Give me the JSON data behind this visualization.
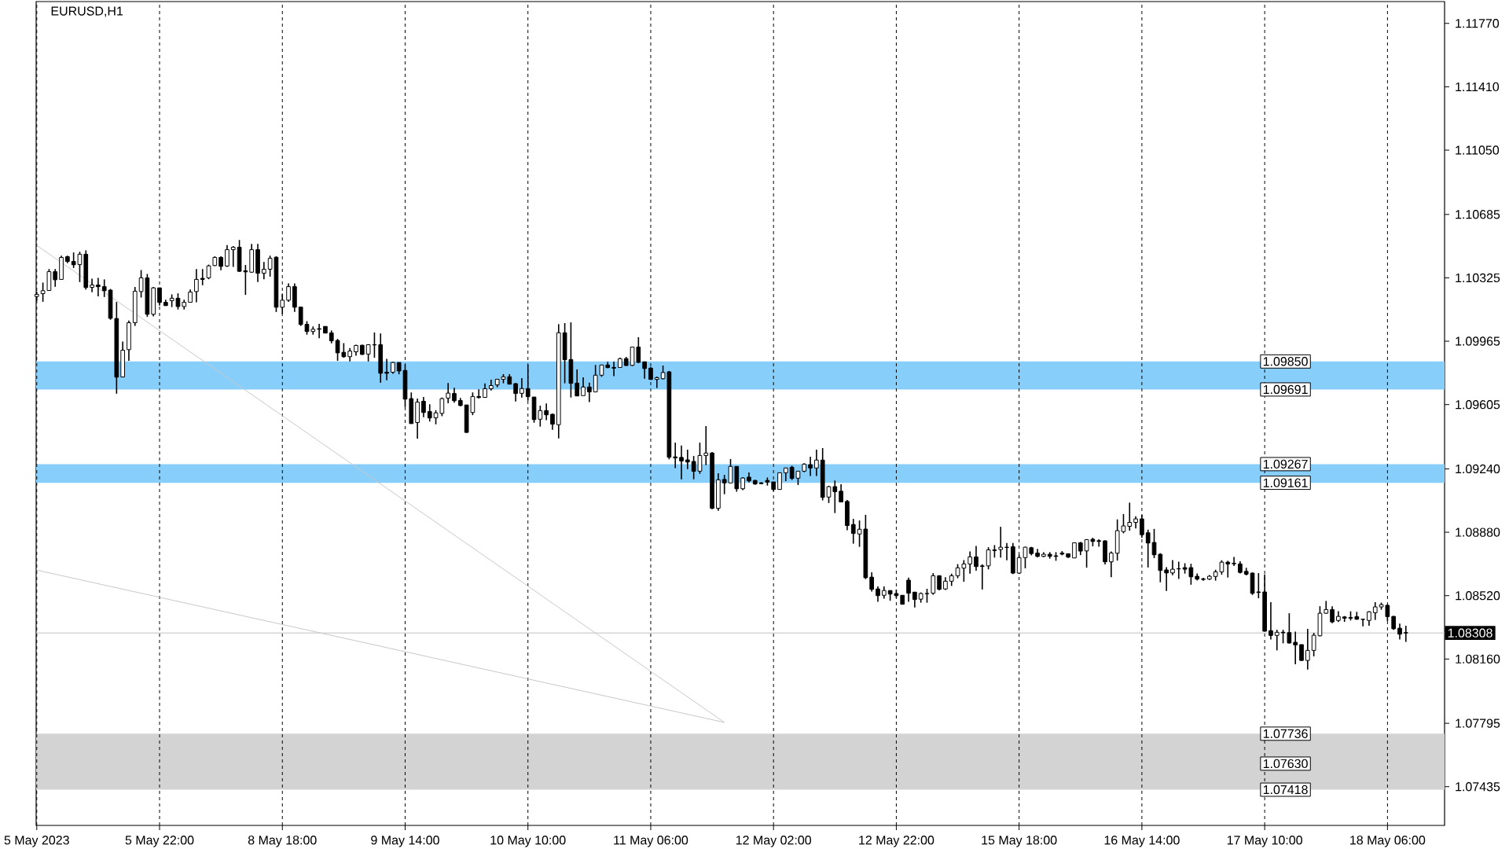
{
  "chart_data": {
    "type": "candlestick",
    "title": "EURUSD,H1",
    "color": "#000000",
    "categories": [
      "5 May 2023",
      null,
      null,
      null,
      null,
      null,
      null,
      null,
      null,
      null,
      null,
      null,
      null,
      null,
      null,
      null,
      null,
      null,
      null,
      null,
      "5 May 22:00",
      null,
      null,
      null,
      null,
      null,
      null,
      null,
      null,
      null,
      null,
      null,
      null,
      null,
      null,
      null,
      null,
      null,
      null,
      null,
      "8 May 18:00",
      null,
      null,
      null,
      null,
      null,
      null,
      null,
      null,
      null,
      null,
      null,
      null,
      null,
      null,
      null,
      null,
      null,
      null,
      null,
      "9 May 14:00",
      null,
      null,
      null,
      null,
      null,
      null,
      null,
      null,
      null,
      null,
      null,
      null,
      null,
      null,
      null,
      null,
      null,
      null,
      null,
      "10 May 10:00",
      null,
      null,
      null,
      null,
      null,
      null,
      null,
      null,
      null,
      null,
      null,
      null,
      null,
      null,
      null,
      null,
      null,
      null,
      null,
      "11 May 06:00",
      null,
      null,
      null,
      null,
      null,
      null,
      null,
      null,
      null,
      null,
      null,
      null,
      null,
      null,
      null,
      null,
      null,
      null,
      null,
      "12 May 02:00",
      null,
      null,
      null,
      null,
      null,
      null,
      null,
      null,
      null,
      null,
      null,
      null,
      null,
      null,
      null,
      null,
      null,
      null,
      null,
      "12 May 22:00",
      null,
      null,
      null,
      null,
      null,
      null,
      null,
      null,
      null,
      null,
      null,
      null,
      null,
      null,
      null,
      null,
      null,
      null,
      null,
      "15 May 18:00",
      null,
      null,
      null,
      null,
      null,
      null,
      null,
      null,
      null,
      null,
      null,
      null,
      null,
      null,
      null,
      null,
      null,
      null,
      null,
      "16 May 14:00",
      null,
      null,
      null,
      null,
      null,
      null,
      null,
      null,
      null,
      null,
      null,
      null,
      null,
      null,
      null,
      null,
      null,
      null,
      null,
      "17 May 10:00",
      null,
      null,
      null,
      null,
      null,
      null,
      null,
      null,
      null,
      null,
      null,
      null,
      null,
      null,
      null,
      null,
      null,
      null,
      null,
      "18 May 06:00",
      null,
      null,
      null
    ],
    "ohlc": [
      [
        1.10219,
        1.10246,
        1.10195,
        1.10231
      ],
      [
        1.10235,
        1.10298,
        1.10189,
        1.10252
      ],
      [
        1.10253,
        1.10375,
        1.10252,
        1.1036
      ],
      [
        1.1036,
        1.10375,
        1.10274,
        1.10314
      ],
      [
        1.10316,
        1.10451,
        1.10316,
        1.10441
      ],
      [
        1.10445,
        1.10451,
        1.10408,
        1.10418
      ],
      [
        1.10418,
        1.10469,
        1.10381,
        1.10399
      ],
      [
        1.104,
        1.10473,
        1.10301,
        1.10459
      ],
      [
        1.10459,
        1.10481,
        1.10258,
        1.1027
      ],
      [
        1.10271,
        1.1032,
        1.10243,
        1.10284
      ],
      [
        1.10284,
        1.10325,
        1.1022,
        1.10275
      ],
      [
        1.10275,
        1.10316,
        1.10216,
        1.10252
      ],
      [
        1.10255,
        1.10262,
        1.10087,
        1.10095
      ],
      [
        1.10094,
        1.10188,
        1.09667,
        1.09761
      ],
      [
        1.09762,
        1.09963,
        1.09762,
        1.09914
      ],
      [
        1.09917,
        1.10082,
        1.09854,
        1.1007
      ],
      [
        1.1007,
        1.10273,
        1.10052,
        1.10249
      ],
      [
        1.10247,
        1.10369,
        1.10213,
        1.10325
      ],
      [
        1.10325,
        1.10347,
        1.10103,
        1.10118
      ],
      [
        1.10118,
        1.10273,
        1.10106,
        1.10268
      ],
      [
        1.10268,
        1.10268,
        1.10167,
        1.10185
      ],
      [
        1.10186,
        1.10201,
        1.10167,
        1.10167
      ],
      [
        1.10195,
        1.10231,
        1.10159,
        1.10209
      ],
      [
        1.10209,
        1.10237,
        1.10145,
        1.10162
      ],
      [
        1.10162,
        1.10201,
        1.10145,
        1.10186
      ],
      [
        1.10186,
        1.10259,
        1.10186,
        1.10244
      ],
      [
        1.10247,
        1.10375,
        1.10186,
        1.10316
      ],
      [
        1.10322,
        1.10375,
        1.10283,
        1.10316
      ],
      [
        1.10325,
        1.104,
        1.10317,
        1.10393
      ],
      [
        1.10395,
        1.10447,
        1.10392,
        1.10441
      ],
      [
        1.10441,
        1.10447,
        1.10368,
        1.1039
      ],
      [
        1.10392,
        1.10511,
        1.10387,
        1.10485
      ],
      [
        1.10485,
        1.10505,
        1.10387,
        1.10499
      ],
      [
        1.10499,
        1.1054,
        1.10359,
        1.10362
      ],
      [
        1.10365,
        1.10398,
        1.10228,
        1.10359
      ],
      [
        1.10357,
        1.10518,
        1.10354,
        1.10485
      ],
      [
        1.10485,
        1.10518,
        1.10301,
        1.10351
      ],
      [
        1.10351,
        1.10415,
        1.10317,
        1.10374
      ],
      [
        1.10374,
        1.10451,
        1.10332,
        1.10436
      ],
      [
        1.10442,
        1.10447,
        1.10131,
        1.10158
      ],
      [
        1.10158,
        1.10235,
        1.10119,
        1.10198
      ],
      [
        1.10198,
        1.10293,
        1.10189,
        1.10275
      ],
      [
        1.10275,
        1.10293,
        1.10131,
        1.10158
      ],
      [
        1.10159,
        1.10159,
        1.10052,
        1.1006
      ],
      [
        1.10061,
        1.10079,
        1.10002,
        1.1002
      ],
      [
        1.1002,
        1.10049,
        1.10002,
        1.10033
      ],
      [
        1.10036,
        1.10064,
        1.09982,
        1.10033
      ],
      [
        1.10049,
        1.10049,
        1.10011,
        1.10011
      ],
      [
        1.10012,
        1.10026,
        1.09953,
        1.09967
      ],
      [
        1.09969,
        1.09978,
        1.09854,
        1.09899
      ],
      [
        1.09902,
        1.09954,
        1.09871,
        1.09877
      ],
      [
        1.09877,
        1.09926,
        1.0985,
        1.09909
      ],
      [
        1.09905,
        1.09945,
        1.09883,
        1.09941
      ],
      [
        1.09942,
        1.09945,
        1.09887,
        1.0989
      ],
      [
        1.09892,
        1.09948,
        1.0985,
        1.09945
      ],
      [
        1.09945,
        1.10015,
        1.09871,
        1.09944
      ],
      [
        1.09945,
        1.10009,
        1.09729,
        1.09783
      ],
      [
        1.09789,
        1.09865,
        1.09743,
        1.09783
      ],
      [
        1.09789,
        1.09847,
        1.0978,
        1.09844
      ],
      [
        1.09844,
        1.09844,
        1.09777,
        1.09796
      ],
      [
        1.09799,
        1.09834,
        1.09591,
        1.09636
      ],
      [
        1.09639,
        1.09674,
        1.09497,
        1.09497
      ],
      [
        1.09503,
        1.09639,
        1.09412,
        1.09619
      ],
      [
        1.09624,
        1.09648,
        1.09533,
        1.0956
      ],
      [
        1.09566,
        1.09607,
        1.09509,
        1.09529
      ],
      [
        1.0953,
        1.09573,
        1.09493,
        1.09558
      ],
      [
        1.09555,
        1.09645,
        1.09539,
        1.09639
      ],
      [
        1.09642,
        1.09728,
        1.09612,
        1.0967
      ],
      [
        1.09668,
        1.09701,
        1.09616,
        1.09627
      ],
      [
        1.09628,
        1.09643,
        1.09595,
        1.096
      ],
      [
        1.09603,
        1.09603,
        1.09445,
        1.09447
      ],
      [
        1.0956,
        1.09674,
        1.09545,
        1.09651
      ],
      [
        1.09651,
        1.09692,
        1.0964,
        1.09645
      ],
      [
        1.09646,
        1.09725,
        1.09646,
        1.09695
      ],
      [
        1.09695,
        1.09746,
        1.09685,
        1.09713
      ],
      [
        1.09717,
        1.09749,
        1.09704,
        1.09749
      ],
      [
        1.09749,
        1.09778,
        1.09726,
        1.09763
      ],
      [
        1.09763,
        1.09778,
        1.09721,
        1.09721
      ],
      [
        1.09724,
        1.09727,
        1.09623,
        1.09668
      ],
      [
        1.09669,
        1.09755,
        1.09645,
        1.09696
      ],
      [
        1.09696,
        1.09831,
        1.09627,
        1.0965
      ],
      [
        1.09648,
        1.09648,
        1.09502,
        1.0952
      ],
      [
        1.09522,
        1.09599,
        1.0948,
        1.09571
      ],
      [
        1.09571,
        1.09611,
        1.09516,
        1.09547
      ],
      [
        1.0955,
        1.09555,
        1.09462,
        1.09494
      ],
      [
        1.09491,
        1.10062,
        1.09413,
        1.10013
      ],
      [
        1.10013,
        1.10068,
        1.09726,
        1.0986
      ],
      [
        1.09861,
        1.10072,
        1.09645,
        1.09726
      ],
      [
        1.09727,
        1.09805,
        1.09654,
        1.09654
      ],
      [
        1.09656,
        1.0976,
        1.09656,
        1.09705
      ],
      [
        1.09705,
        1.0973,
        1.09619,
        1.09677
      ],
      [
        1.09677,
        1.0983,
        1.09677,
        1.09772
      ],
      [
        1.09772,
        1.0983,
        1.09763,
        1.0983
      ],
      [
        1.0983,
        1.09848,
        1.09812,
        1.09815
      ],
      [
        1.09816,
        1.09849,
        1.09766,
        1.09812
      ],
      [
        1.09816,
        1.09871,
        1.09816,
        1.09866
      ],
      [
        1.09866,
        1.09876,
        1.09825,
        1.09827
      ],
      [
        1.09828,
        1.09932,
        1.09824,
        1.09932
      ],
      [
        1.09932,
        1.09988,
        1.0984,
        1.09845
      ],
      [
        1.09848,
        1.09848,
        1.09752,
        1.0981
      ],
      [
        1.09812,
        1.09819,
        1.09745,
        1.09748
      ],
      [
        1.09748,
        1.09764,
        1.09699,
        1.09758
      ],
      [
        1.09752,
        1.09827,
        1.09748,
        1.09787
      ],
      [
        1.09791,
        1.09796,
        1.09294,
        1.09306
      ],
      [
        1.09308,
        1.09389,
        1.09244,
        1.09302
      ],
      [
        1.09305,
        1.09372,
        1.09181,
        1.09285
      ],
      [
        1.09291,
        1.09349,
        1.09239,
        1.09279
      ],
      [
        1.09282,
        1.09313,
        1.09181,
        1.09226
      ],
      [
        1.09227,
        1.09389,
        1.09212,
        1.09316
      ],
      [
        1.09316,
        1.09483,
        1.09261,
        1.0933
      ],
      [
        1.0933,
        1.09336,
        1.09011,
        1.09016
      ],
      [
        1.09016,
        1.09215,
        1.09002,
        1.09178
      ],
      [
        1.0918,
        1.09206,
        1.09096,
        1.0916
      ],
      [
        1.0916,
        1.09296,
        1.0916,
        1.09254
      ],
      [
        1.09254,
        1.09254,
        1.0911,
        1.09127
      ],
      [
        1.09127,
        1.09193,
        1.09119,
        1.09188
      ],
      [
        1.09193,
        1.0922,
        1.09163,
        1.09172
      ],
      [
        1.09174,
        1.09178,
        1.0915,
        1.09154
      ],
      [
        1.0916,
        1.09165,
        1.09154,
        1.09156
      ],
      [
        1.09174,
        1.09191,
        1.09145,
        1.09165
      ],
      [
        1.09166,
        1.09166,
        1.09114,
        1.09123
      ],
      [
        1.09123,
        1.09218,
        1.09123,
        1.09218
      ],
      [
        1.09218,
        1.09245,
        1.09171,
        1.09245
      ],
      [
        1.09249,
        1.09258,
        1.09177,
        1.09186
      ],
      [
        1.09187,
        1.09227,
        1.09148,
        1.09227
      ],
      [
        1.09227,
        1.09272,
        1.09221,
        1.09267
      ],
      [
        1.09264,
        1.09309,
        1.09199,
        1.09245
      ],
      [
        1.09245,
        1.09349,
        1.09199,
        1.0929
      ],
      [
        1.0929,
        1.09358,
        1.09061,
        1.09078
      ],
      [
        1.0908,
        1.09144,
        1.09046,
        1.09139
      ],
      [
        1.09139,
        1.09174,
        1.08989,
        1.0911
      ],
      [
        1.09113,
        1.09153,
        1.09052,
        1.09052
      ],
      [
        1.09055,
        1.09063,
        1.08891,
        1.08918
      ],
      [
        1.08924,
        1.08956,
        1.08815,
        1.08873
      ],
      [
        1.0887,
        1.08947,
        1.08797,
        1.08897
      ],
      [
        1.08898,
        1.08979,
        1.08614,
        1.08622
      ],
      [
        1.08625,
        1.08653,
        1.08543,
        1.08556
      ],
      [
        1.08558,
        1.08572,
        1.08485,
        1.0852
      ],
      [
        1.08522,
        1.08572,
        1.08503,
        1.08549
      ],
      [
        1.08549,
        1.08549,
        1.08491,
        1.08529
      ],
      [
        1.08532,
        1.08555,
        1.08505,
        1.0852
      ],
      [
        1.08522,
        1.08522,
        1.08471,
        1.08471
      ],
      [
        1.08608,
        1.08622,
        1.08485,
        1.08534
      ],
      [
        1.0854,
        1.0854,
        1.08453,
        1.08498
      ],
      [
        1.085,
        1.08538,
        1.0848,
        1.08532
      ],
      [
        1.08531,
        1.08559,
        1.0848,
        1.08532
      ],
      [
        1.08534,
        1.08648,
        1.08525,
        1.08633
      ],
      [
        1.08633,
        1.08636,
        1.0855,
        1.08556
      ],
      [
        1.08558,
        1.08625,
        1.08552,
        1.08602
      ],
      [
        1.08602,
        1.08645,
        1.08575,
        1.08633
      ],
      [
        1.08633,
        1.08699,
        1.08619,
        1.08678
      ],
      [
        1.08676,
        1.08722,
        1.08599,
        1.087
      ],
      [
        1.087,
        1.08771,
        1.08645,
        1.0874
      ],
      [
        1.0874,
        1.08802,
        1.08661,
        1.08685
      ],
      [
        1.08689,
        1.08698,
        1.08555,
        1.08686
      ],
      [
        1.08689,
        1.08795,
        1.08669,
        1.0878
      ],
      [
        1.0878,
        1.08807,
        1.08736,
        1.08776
      ],
      [
        1.08782,
        1.08911,
        1.08736,
        1.08795
      ],
      [
        1.08795,
        1.08819,
        1.08721,
        1.08794
      ],
      [
        1.08798,
        1.08819,
        1.08643,
        1.08648
      ],
      [
        1.08648,
        1.08753,
        1.08643,
        1.08736
      ],
      [
        1.08736,
        1.08798,
        1.08675,
        1.08795
      ],
      [
        1.08792,
        1.08797,
        1.08749,
        1.08759
      ],
      [
        1.08762,
        1.08785,
        1.08737,
        1.08743
      ],
      [
        1.08743,
        1.08767,
        1.08739,
        1.08755
      ],
      [
        1.08755,
        1.08767,
        1.0873,
        1.08743
      ],
      [
        1.08746,
        1.08767,
        1.08718,
        1.08743
      ],
      [
        1.08762,
        1.08773,
        1.08749,
        1.08756
      ],
      [
        1.08758,
        1.08759,
        1.08734,
        1.08739
      ],
      [
        1.08734,
        1.0882,
        1.08734,
        1.0882
      ],
      [
        1.0882,
        1.08825,
        1.0875,
        1.08773
      ],
      [
        1.08774,
        1.08841,
        1.08679,
        1.08838
      ],
      [
        1.0884,
        1.08849,
        1.088,
        1.08828
      ],
      [
        1.08832,
        1.0884,
        1.08798,
        1.08828
      ],
      [
        1.08831,
        1.08835,
        1.08697,
        1.08712
      ],
      [
        1.08712,
        1.08771,
        1.08625,
        1.08762
      ],
      [
        1.08761,
        1.08953,
        1.08719,
        1.08889
      ],
      [
        1.08884,
        1.08983,
        1.08874,
        1.08916
      ],
      [
        1.08914,
        1.09048,
        1.08889,
        1.08936
      ],
      [
        1.08936,
        1.08971,
        1.08902,
        1.08956
      ],
      [
        1.08956,
        1.08978,
        1.08849,
        1.08866
      ],
      [
        1.08877,
        1.08895,
        1.0868,
        1.08819
      ],
      [
        1.08822,
        1.08899,
        1.08733,
        1.08752
      ],
      [
        1.08755,
        1.08761,
        1.08596,
        1.08663
      ],
      [
        1.08666,
        1.08682,
        1.08547,
        1.08649
      ],
      [
        1.08649,
        1.08722,
        1.08636,
        1.0867
      ],
      [
        1.08673,
        1.08713,
        1.08615,
        1.08672
      ],
      [
        1.08679,
        1.08704,
        1.08645,
        1.0867
      ],
      [
        1.08679,
        1.08701,
        1.08582,
        1.08627
      ],
      [
        1.0863,
        1.08646,
        1.08606,
        1.08614
      ],
      [
        1.08615,
        1.08621,
        1.08605,
        1.08612
      ],
      [
        1.08614,
        1.08637,
        1.08609,
        1.0863
      ],
      [
        1.08629,
        1.08667,
        1.08605,
        1.08655
      ],
      [
        1.08655,
        1.08721,
        1.08639,
        1.0871
      ],
      [
        1.0871,
        1.08718,
        1.08623,
        1.087
      ],
      [
        1.08704,
        1.0874,
        1.08688,
        1.08701
      ],
      [
        1.087,
        1.08715,
        1.08646,
        1.08652
      ],
      [
        1.08658,
        1.08678,
        1.08635,
        1.08642
      ],
      [
        1.08648,
        1.08652,
        1.08524,
        1.08533
      ],
      [
        1.08541,
        1.08648,
        1.08505,
        1.08538
      ],
      [
        1.08541,
        1.0864,
        1.08316,
        1.08318
      ],
      [
        1.08321,
        1.08483,
        1.08271,
        1.08294
      ],
      [
        1.08294,
        1.08326,
        1.08209,
        1.08312
      ],
      [
        1.08312,
        1.08326,
        1.08249,
        1.08309
      ],
      [
        1.0831,
        1.0842,
        1.08248,
        1.08251
      ],
      [
        1.08255,
        1.08316,
        1.0813,
        1.0824
      ],
      [
        1.08242,
        1.08242,
        1.08149,
        1.08152
      ],
      [
        1.08152,
        1.08331,
        1.081,
        1.08209
      ],
      [
        1.08209,
        1.08309,
        1.08175,
        1.08295
      ],
      [
        1.08292,
        1.0846,
        1.08289,
        1.0842
      ],
      [
        1.0842,
        1.0849,
        1.08417,
        1.08441
      ],
      [
        1.08441,
        1.08459,
        1.08364,
        1.08371
      ],
      [
        1.08379,
        1.08432,
        1.0837,
        1.08402
      ],
      [
        1.08399,
        1.08404,
        1.08371,
        1.08392
      ],
      [
        1.08396,
        1.08431,
        1.08379,
        1.08392
      ],
      [
        1.08401,
        1.08428,
        1.08383,
        1.08386
      ],
      [
        1.08386,
        1.08386,
        1.08346,
        1.08385
      ],
      [
        1.08379,
        1.08432,
        1.08349,
        1.08428
      ],
      [
        1.08423,
        1.08483,
        1.08382,
        1.08456
      ],
      [
        1.08456,
        1.0848,
        1.0844,
        1.08469
      ],
      [
        1.08465,
        1.08471,
        1.08376,
        1.08401
      ],
      [
        1.08402,
        1.08405,
        1.08326,
        1.08332
      ],
      [
        1.08335,
        1.08361,
        1.08271,
        1.08301
      ],
      [
        1.0831,
        1.08349,
        1.08257,
        1.08308
      ]
    ],
    "series": [
      {
        "type": "line",
        "color": "#c8c8c8",
        "values": [
          1.10509,
          null,
          null,
          null,
          null,
          null,
          null,
          null,
          null,
          null,
          null,
          null,
          null,
          null,
          null,
          null,
          null,
          null,
          null,
          null,
          null,
          null,
          null,
          null,
          null,
          null,
          null,
          null,
          null,
          null,
          null,
          null,
          null,
          null,
          null,
          null,
          null,
          null,
          null,
          null,
          null,
          null,
          null,
          null,
          null,
          null,
          null,
          null,
          null,
          null,
          null,
          null,
          null,
          null,
          null,
          null,
          null,
          null,
          null,
          null,
          null,
          null,
          null,
          null,
          null,
          null,
          null,
          null,
          null,
          null,
          null,
          null,
          null,
          null,
          null,
          null,
          null,
          null,
          null,
          null,
          null,
          null,
          null,
          null,
          null,
          null,
          null,
          null,
          null,
          null,
          null,
          null,
          null,
          null,
          null,
          null,
          null,
          null,
          null,
          null,
          null,
          null,
          null,
          null,
          null,
          null,
          null,
          null,
          null,
          null,
          null,
          null,
          1.078,
          null,
          null,
          null,
          null,
          null,
          null,
          null,
          null,
          null,
          null,
          null,
          null,
          null,
          null,
          null,
          null,
          null,
          null,
          null,
          null,
          null,
          null,
          null,
          null,
          null,
          null,
          null,
          null,
          null,
          null,
          null,
          null,
          null,
          null,
          null,
          null,
          null,
          null,
          null,
          null,
          null,
          null,
          null,
          null,
          null,
          null,
          null,
          null,
          null,
          null,
          null,
          null,
          null,
          null,
          null,
          null,
          null,
          null,
          null,
          null,
          null,
          null,
          null,
          null,
          null,
          null,
          null,
          null,
          null,
          null,
          null,
          null,
          null,
          null,
          null,
          null,
          null,
          null,
          null,
          null,
          null,
          null,
          null,
          null,
          null,
          null,
          null,
          null,
          null,
          null,
          null,
          null,
          null,
          null,
          null,
          null,
          null,
          null,
          null,
          null,
          null,
          null,
          null,
          null,
          null,
          null,
          null,
          null,
          null,
          null,
          null
        ]
      },
      {
        "type": "line",
        "color": "#c8c8c8",
        "values": [
          1.08665,
          null,
          null,
          null,
          null,
          null,
          null,
          null,
          null,
          null,
          null,
          null,
          null,
          null,
          null,
          null,
          null,
          null,
          null,
          null,
          null,
          null,
          null,
          null,
          null,
          null,
          null,
          null,
          null,
          null,
          null,
          null,
          null,
          null,
          null,
          null,
          null,
          null,
          null,
          null,
          null,
          null,
          null,
          null,
          null,
          null,
          null,
          null,
          null,
          null,
          null,
          null,
          null,
          null,
          null,
          null,
          null,
          null,
          null,
          null,
          null,
          null,
          null,
          null,
          null,
          null,
          null,
          null,
          null,
          null,
          null,
          null,
          null,
          null,
          null,
          null,
          null,
          null,
          null,
          null,
          null,
          null,
          null,
          null,
          null,
          null,
          null,
          null,
          null,
          null,
          null,
          null,
          null,
          null,
          null,
          null,
          null,
          null,
          null,
          null,
          null,
          null,
          null,
          null,
          null,
          null,
          null,
          null,
          null,
          null,
          null,
          null,
          1.078,
          null,
          null,
          null,
          null,
          null,
          null,
          null,
          null,
          null,
          null,
          null,
          null,
          null,
          null,
          null,
          null,
          null,
          null,
          null,
          null,
          null,
          null,
          null,
          null,
          null,
          null,
          null,
          null,
          null,
          null,
          null,
          null,
          null,
          null,
          null,
          null,
          null,
          null,
          null,
          null,
          null,
          null,
          null,
          null,
          null,
          null,
          null,
          null,
          null,
          null,
          null,
          null,
          null,
          null,
          null,
          null,
          null,
          null,
          null,
          null,
          null,
          null,
          null,
          null,
          null,
          null,
          null,
          null,
          null,
          null,
          null,
          null,
          null,
          null,
          null,
          null,
          null,
          null,
          null,
          null,
          null,
          null,
          null,
          null,
          null,
          null,
          null,
          null,
          null,
          null,
          null,
          null,
          null,
          null,
          null,
          null,
          null,
          null,
          null,
          null,
          null,
          null,
          null,
          null,
          null,
          null,
          null,
          null,
          null,
          null,
          null
        ]
      }
    ],
    "ylim": [
      1.07215,
      1.11894
    ],
    "yticks": [
      1.07435,
      1.07795,
      {
        "value": 1.0816,
        "label": "1.08160"
      },
      {
        "value": 1.0852,
        "label": "1.08520"
      },
      {
        "value": 1.0888,
        "label": "1.08880"
      },
      {
        "value": 1.0924,
        "label": "1.09240"
      },
      1.09605,
      1.09965,
      1.10325,
      1.10685,
      {
        "value": 1.1105,
        "label": "1.11050"
      },
      {
        "value": 1.1141,
        "label": "1.11410"
      },
      {
        "value": 1.1177,
        "label": "1.11770"
      }
    ],
    "grid": "x",
    "bands": [
      {
        "axis": "y",
        "from": 1.09691,
        "to": 1.0985,
        "color": "#87cefa"
      },
      {
        "axis": "y",
        "from": 1.09161,
        "to": 1.09267,
        "color": "#87cefa"
      },
      {
        "axis": "y",
        "from": 1.07418,
        "to": 1.07736,
        "color": "#d3d3d3"
      }
    ],
    "ref_lines": [
      {
        "axis": "y",
        "value": 1.08308,
        "label": "1.08308",
        "color": "#c0c0c0"
      }
    ],
    "annotations": [
      {
        "text": "1.09850",
        "y": 1.0985
      },
      {
        "text": "1.09691",
        "y": 1.09691
      },
      {
        "text": "1.09267",
        "y": 1.09267
      },
      {
        "text": "1.09161",
        "y": 1.09161
      },
      {
        "text": "1.07736",
        "y": 1.07736
      },
      "1.07630",
      {
        "text": "1.07418",
        "y": 1.07418
      }
    ]
  }
}
